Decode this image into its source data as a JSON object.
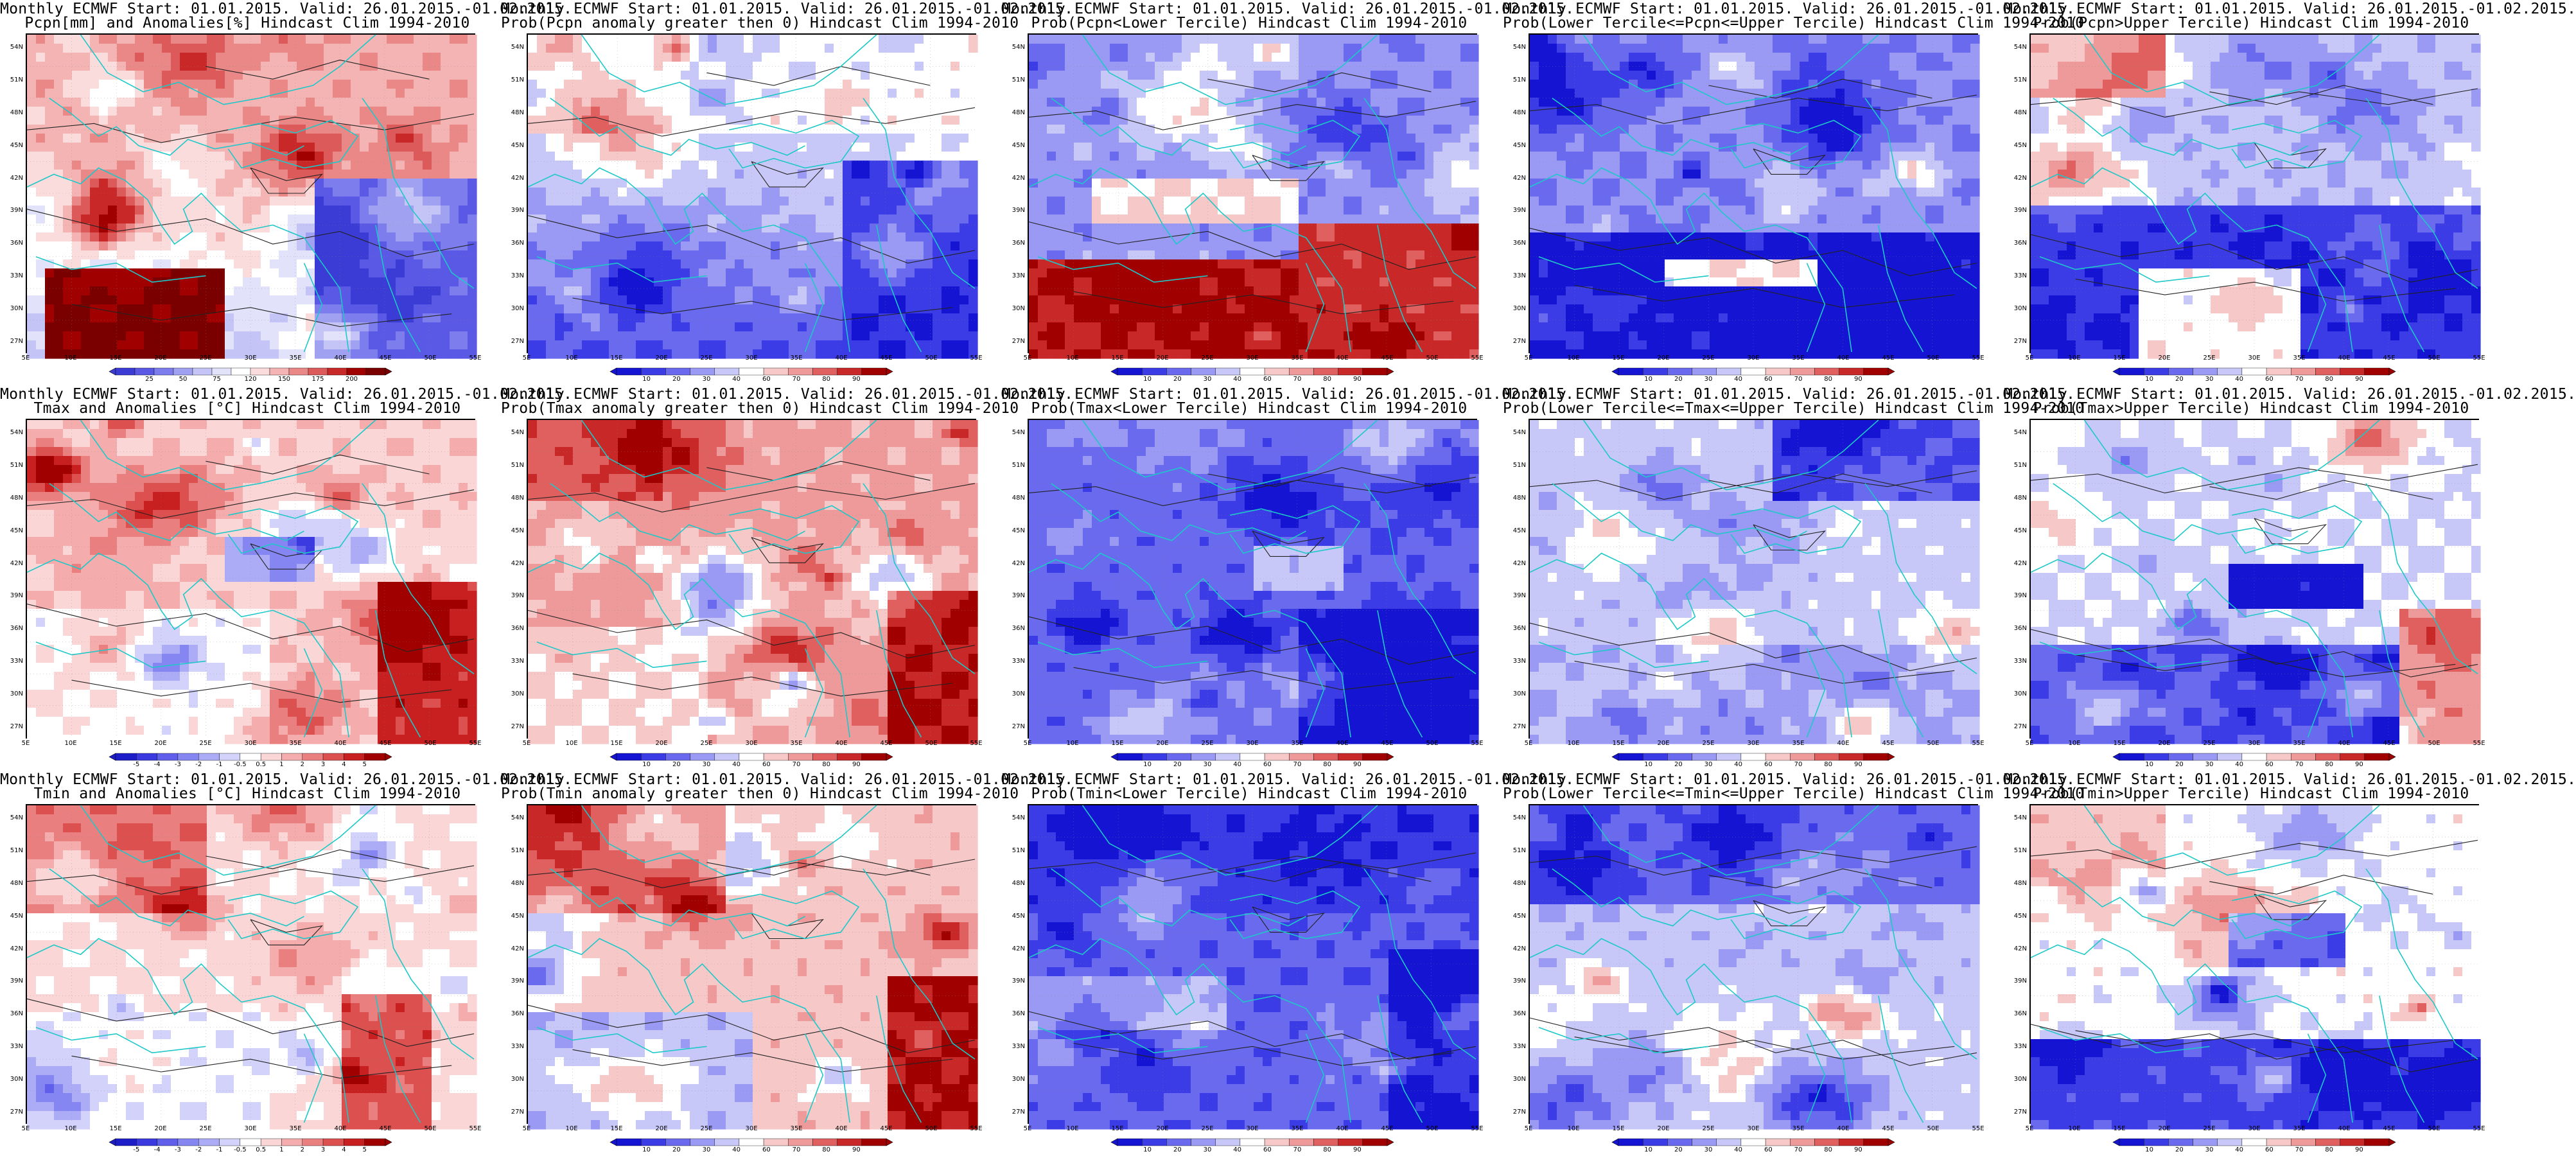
{
  "scale_sets": {
    "pcpn_anom": {
      "colors": [
        "#3b3bd6",
        "#5959e6",
        "#7d7dee",
        "#a1a1f2",
        "#c4c4f6",
        "#e2e2fb",
        "#ffffff",
        "#fbdcdc",
        "#f4b4b4",
        "#ea8888",
        "#dc5a5a",
        "#c82828",
        "#a00000",
        "#7a0000"
      ],
      "ticks": [
        "25",
        "50",
        "75",
        "120",
        "150",
        "175",
        "200"
      ]
    },
    "temp_anom": {
      "colors": [
        "#1e1ec8",
        "#3a3ae0",
        "#5f5fec",
        "#8686f2",
        "#acacf6",
        "#d2d2fa",
        "#ffffff",
        "#fbd6d6",
        "#f4acac",
        "#ea7f7f",
        "#dc5050",
        "#c82020",
        "#a00000"
      ],
      "ticks": [
        "-5",
        "-4",
        "-3",
        "-2",
        "-1",
        "-0.5",
        "0.5",
        "1",
        "2",
        "3",
        "4",
        "5"
      ]
    },
    "prob": {
      "colors": [
        "#1414d2",
        "#3c3ce6",
        "#6a6aee",
        "#9a9af4",
        "#c8c8f8",
        "#ffffff",
        "#f6c8c8",
        "#ee9a9a",
        "#e06060",
        "#c82828",
        "#a00000"
      ],
      "ticks": [
        "10",
        "20",
        "30",
        "40",
        "60",
        "70",
        "80",
        "90"
      ]
    }
  },
  "lat_labels": [
    "54N",
    "51N",
    "48N",
    "45N",
    "42N",
    "39N",
    "36N",
    "33N",
    "30N",
    "27N"
  ],
  "lon_labels": [
    "5E",
    "10E",
    "15E",
    "20E",
    "25E",
    "30E",
    "35E",
    "40E",
    "45E",
    "50E",
    "55E"
  ],
  "rows": [
    {
      "panels": [
        {
          "title1": "Monthly ECMWF Start: 01.01.2015. Valid: 26.01.2015.-01.02.2015.",
          "title2": "Pcpn[mm] and Anomalies[%] Hindcast Clim 1994-2010",
          "scale": "pcpn_anom"
        },
        {
          "title1": "Monthly ECMWF Start: 01.01.2015. Valid: 26.01.2015.-01.02.2015.",
          "title2": "Prob(Pcpn anomaly greater then 0) Hindcast Clim 1994-2010",
          "scale": "prob"
        },
        {
          "title1": "Monthly ECMWF Start: 01.01.2015. Valid: 26.01.2015.-01.02.2015.",
          "title2": "Prob(Pcpn<Lower Tercile) Hindcast Clim 1994-2010",
          "scale": "prob"
        },
        {
          "title1": "Monthly ECMWF Start: 01.01.2015. Valid: 26.01.2015.-01.02.2015.",
          "title2": "Prob(Lower Tercile<=Pcpn<=Upper Tercile) Hindcast Clim 1994-2010",
          "scale": "prob"
        },
        {
          "title1": "Monthly ECMWF Start: 01.01.2015. Valid: 26.01.2015.-01.02.2015.",
          "title2": "Prob(Pcpn>Upper Tercile) Hindcast Clim 1994-2010",
          "scale": "prob"
        }
      ]
    },
    {
      "panels": [
        {
          "title1": "Monthly ECMWF Start: 01.01.2015. Valid: 26.01.2015.-01.02.2015.",
          "title2": "Tmax and Anomalies [°C] Hindcast Clim 1994-2010",
          "scale": "temp_anom"
        },
        {
          "title1": "Monthly ECMWF Start: 01.01.2015. Valid: 26.01.2015.-01.02.2015.",
          "title2": "Prob(Tmax anomaly greater then 0) Hindcast Clim 1994-2010",
          "scale": "prob"
        },
        {
          "title1": "Monthly ECMWF Start: 01.01.2015. Valid: 26.01.2015.-01.02.2015.",
          "title2": "Prob(Tmax<Lower Tercile) Hindcast Clim 1994-2010",
          "scale": "prob"
        },
        {
          "title1": "Monthly ECMWF Start: 01.01.2015. Valid: 26.01.2015.-01.02.2015.",
          "title2": "Prob(Lower Tercile<=Tmax<=Upper Tercile) Hindcast Clim 1994-2010",
          "scale": "prob"
        },
        {
          "title1": "Monthly ECMWF Start: 01.01.2015. Valid: 26.01.2015.-01.02.2015.",
          "title2": "Prob(Tmax>Upper Tercile) Hindcast Clim 1994-2010",
          "scale": "prob"
        }
      ]
    },
    {
      "panels": [
        {
          "title1": "Monthly ECMWF Start: 01.01.2015. Valid: 26.01.2015.-01.02.2015.",
          "title2": "Tmin and Anomalies [°C] Hindcast Clim 1994-2010",
          "scale": "temp_anom"
        },
        {
          "title1": "Monthly ECMWF Start: 01.01.2015. Valid: 26.01.2015.-01.02.2015.",
          "title2": "Prob(Tmin anomaly greater then 0) Hindcast Clim 1994-2010",
          "scale": "prob"
        },
        {
          "title1": "Monthly ECMWF Start: 01.01.2015. Valid: 26.01.2015.-01.02.2015.",
          "title2": "Prob(Tmin<Lower Tercile) Hindcast Clim 1994-2010",
          "scale": "prob"
        },
        {
          "title1": "Monthly ECMWF Start: 01.01.2015. Valid: 26.01.2015.-01.02.2015.",
          "title2": "Prob(Lower Tercile<=Tmin<=Upper Tercile) Hindcast Clim 1994-2010",
          "scale": "prob"
        },
        {
          "title1": "Monthly ECMWF Start: 01.01.2015. Valid: 26.01.2015.-01.02.2015.",
          "title2": "Prob(Tmin>Upper Tercile) Hindcast Clim 1994-2010",
          "scale": "prob"
        }
      ]
    }
  ]
}
